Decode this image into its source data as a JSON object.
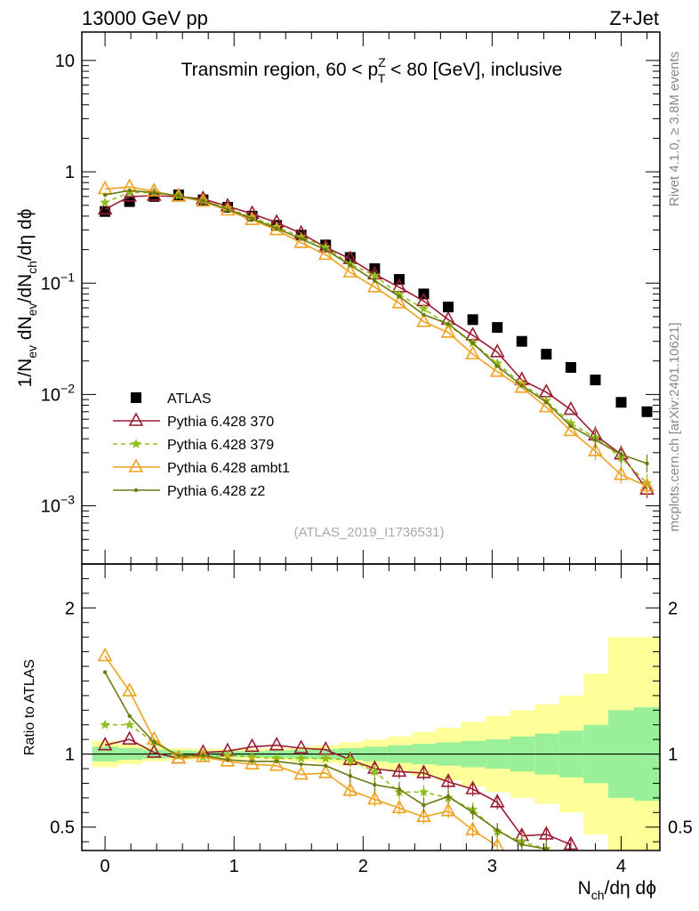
{
  "header": {
    "left": "13000 GeV pp",
    "right": "Z+Jet"
  },
  "side_labels": {
    "rivet": "Rivet 4.1.0, ≥ 3.8M events",
    "mcplots": "mcplots.cern.ch [arXiv:2401.10621]"
  },
  "chart_data": [
    {
      "type": "scatter",
      "panel": "main",
      "title_parts": {
        "pre": "Transmin region, 60 < p",
        "sup": "Z",
        "sub": "T",
        "post": " < 80 [GeV], inclusive"
      },
      "watermark": "(ATLAS_2019_I1736531)",
      "ylabel_parts": [
        "1/N",
        "ev",
        " dN",
        "ev",
        "/dN",
        "ch",
        "/dη dϕ"
      ],
      "xlabel_parts": [
        "N",
        "ch",
        "/dη dϕ"
      ],
      "yscale": "log",
      "xlim": [
        -0.18,
        4.3
      ],
      "ylim": [
        0.0003,
        18
      ],
      "y_ticks": [
        {
          "value": 10,
          "label": "10"
        },
        {
          "value": 1,
          "label": "1"
        },
        {
          "value": 0.1,
          "base": "10",
          "exp": "−1"
        },
        {
          "value": 0.01,
          "base": "10",
          "exp": "−2"
        },
        {
          "value": 0.001,
          "base": "10",
          "exp": "−3"
        }
      ],
      "x_ticks": [
        "0",
        "1",
        "2",
        "3",
        "4"
      ],
      "legend_position": "lower-left",
      "series": [
        {
          "name": "ATLAS",
          "color": "#000000",
          "marker": "square",
          "line": "none",
          "x": [
            0,
            0.19,
            0.38,
            0.57,
            0.76,
            0.95,
            1.14,
            1.33,
            1.52,
            1.71,
            1.9,
            2.09,
            2.28,
            2.47,
            2.66,
            2.85,
            3.04,
            3.23,
            3.42,
            3.61,
            3.8,
            4.0,
            4.2
          ],
          "y": [
            0.44,
            0.54,
            0.6,
            0.62,
            0.56,
            0.48,
            0.4,
            0.33,
            0.27,
            0.22,
            0.17,
            0.135,
            0.108,
            0.08,
            0.061,
            0.047,
            0.04,
            0.03,
            0.023,
            0.0175,
            0.0135,
            0.0085,
            0.007
          ]
        },
        {
          "name": "Pythia 6.428 370",
          "color": "#9b1b30",
          "marker": "triangle-open",
          "line": "solid",
          "x": [
            0,
            0.19,
            0.38,
            0.57,
            0.76,
            0.95,
            1.14,
            1.33,
            1.52,
            1.71,
            1.9,
            2.09,
            2.28,
            2.47,
            2.66,
            2.85,
            3.04,
            3.23,
            3.42,
            3.61,
            3.8,
            4.0,
            4.2
          ],
          "y": [
            0.46,
            0.6,
            0.61,
            0.6,
            0.57,
            0.49,
            0.42,
            0.35,
            0.28,
            0.21,
            0.165,
            0.12,
            0.092,
            0.069,
            0.047,
            0.034,
            0.024,
            0.0135,
            0.0105,
            0.0073,
            0.0043,
            0.0029,
            0.0014
          ]
        },
        {
          "name": "Pythia 6.428 379",
          "color": "#8fbf1a",
          "marker": "star",
          "line": "dashed",
          "x": [
            0,
            0.19,
            0.38,
            0.57,
            0.76,
            0.95,
            1.14,
            1.33,
            1.52,
            1.71,
            1.9,
            2.09,
            2.28,
            2.47,
            2.66,
            2.85,
            3.04,
            3.23,
            3.42,
            3.61,
            3.8,
            4.0,
            4.2
          ],
          "y": [
            0.53,
            0.65,
            0.65,
            0.61,
            0.55,
            0.47,
            0.39,
            0.32,
            0.26,
            0.21,
            0.148,
            0.117,
            0.079,
            0.059,
            0.042,
            0.029,
            0.019,
            0.0125,
            0.0088,
            0.0055,
            0.0041,
            0.0027,
            0.0016
          ]
        },
        {
          "name": "Pythia 6.428 ambt1",
          "color": "#f0a21e",
          "marker": "triangle-open",
          "line": "solid",
          "x": [
            0,
            0.19,
            0.38,
            0.57,
            0.76,
            0.95,
            1.14,
            1.33,
            1.52,
            1.71,
            1.9,
            2.09,
            2.28,
            2.47,
            2.66,
            2.85,
            3.04,
            3.23,
            3.42,
            3.61,
            3.8,
            4.0,
            4.2
          ],
          "y": [
            0.7,
            0.73,
            0.67,
            0.6,
            0.54,
            0.45,
            0.37,
            0.3,
            0.23,
            0.18,
            0.125,
            0.092,
            0.066,
            0.045,
            0.036,
            0.023,
            0.016,
            0.0115,
            0.0077,
            0.0047,
            0.0031,
            0.0019,
            0.0015
          ]
        },
        {
          "name": "Pythia 6.428 z2",
          "color": "#6b7a12",
          "marker": "dot",
          "line": "solid",
          "x": [
            0,
            0.19,
            0.38,
            0.57,
            0.76,
            0.95,
            1.14,
            1.33,
            1.52,
            1.71,
            1.9,
            2.09,
            2.28,
            2.47,
            2.66,
            2.85,
            3.04,
            3.23,
            3.42,
            3.61,
            3.8,
            4.0,
            4.2
          ],
          "y": [
            0.62,
            0.68,
            0.65,
            0.61,
            0.55,
            0.46,
            0.38,
            0.31,
            0.25,
            0.2,
            0.145,
            0.105,
            0.076,
            0.052,
            0.043,
            0.029,
            0.018,
            0.012,
            0.0085,
            0.0052,
            0.0039,
            0.0029,
            0.0024
          ]
        }
      ]
    },
    {
      "type": "line",
      "panel": "ratio",
      "ylabel": "Ratio to ATLAS",
      "xlim": [
        -0.18,
        4.3
      ],
      "ylim": [
        0.34,
        2.3
      ],
      "y_ticks": [
        "0.5",
        "1",
        "2"
      ],
      "band_edges": [
        -0.1,
        0.1,
        0.29,
        0.48,
        0.67,
        0.86,
        1.05,
        1.24,
        1.43,
        1.62,
        1.81,
        2.0,
        2.19,
        2.38,
        2.57,
        2.76,
        2.95,
        3.14,
        3.33,
        3.52,
        3.71,
        3.9,
        4.1,
        4.3
      ],
      "band_inner": [
        0.05,
        0.04,
        0.03,
        0.025,
        0.02,
        0.02,
        0.02,
        0.025,
        0.03,
        0.035,
        0.04,
        0.05,
        0.06,
        0.07,
        0.08,
        0.09,
        0.1,
        0.12,
        0.14,
        0.16,
        0.2,
        0.3,
        0.32
      ],
      "band_outer": [
        0.09,
        0.07,
        0.05,
        0.04,
        0.035,
        0.035,
        0.035,
        0.04,
        0.05,
        0.06,
        0.08,
        0.1,
        0.12,
        0.15,
        0.18,
        0.22,
        0.26,
        0.3,
        0.34,
        0.4,
        0.55,
        0.8,
        0.8
      ],
      "series": [
        {
          "name": "Pythia 6.428 370",
          "color": "#9b1b30",
          "x": [
            0,
            0.19,
            0.38,
            0.57,
            0.76,
            0.95,
            1.14,
            1.33,
            1.52,
            1.71,
            1.9,
            2.09,
            2.28,
            2.47,
            2.66,
            2.85,
            3.04,
            3.23,
            3.42,
            3.61
          ],
          "y": [
            1.06,
            1.1,
            1.01,
            0.97,
            1.01,
            1.02,
            1.05,
            1.06,
            1.04,
            1.03,
            0.96,
            0.9,
            0.88,
            0.87,
            0.81,
            0.76,
            0.67,
            0.44,
            0.45,
            0.38
          ]
        },
        {
          "name": "Pythia 6.428 379",
          "color": "#8fbf1a",
          "x": [
            0,
            0.19,
            0.38,
            0.57,
            0.76,
            0.95,
            1.14,
            1.33,
            1.52,
            1.71,
            1.9,
            2.09,
            2.28,
            2.47,
            2.66,
            2.85,
            3.04,
            3.23,
            3.42
          ],
          "y": [
            1.2,
            1.2,
            1.08,
            0.99,
            0.98,
            0.99,
            0.98,
            0.97,
            0.97,
            0.97,
            0.96,
            0.88,
            0.74,
            0.74,
            0.7,
            0.62,
            0.47,
            0.4,
            0.35
          ]
        },
        {
          "name": "Pythia 6.428 ambt1",
          "color": "#f0a21e",
          "x": [
            0,
            0.19,
            0.38,
            0.57,
            0.76,
            0.95,
            1.14,
            1.33,
            1.52,
            1.71,
            1.9,
            2.09,
            2.28,
            2.47,
            2.66,
            2.85,
            3.04
          ],
          "y": [
            1.67,
            1.43,
            1.1,
            0.97,
            0.98,
            0.95,
            0.93,
            0.92,
            0.86,
            0.87,
            0.75,
            0.69,
            0.63,
            0.57,
            0.61,
            0.48,
            0.37
          ]
        },
        {
          "name": "Pythia 6.428 z2",
          "color": "#6b7a12",
          "x": [
            0,
            0.19,
            0.38,
            0.57,
            0.76,
            0.95,
            1.14,
            1.33,
            1.52,
            1.71,
            1.9,
            2.09,
            2.28,
            2.47,
            2.66,
            2.85,
            3.04,
            3.23,
            3.42
          ],
          "y": [
            1.56,
            1.26,
            1.08,
            0.99,
            0.99,
            0.96,
            0.95,
            0.95,
            0.93,
            0.92,
            0.85,
            0.79,
            0.76,
            0.65,
            0.71,
            0.6,
            0.48,
            0.38,
            0.35
          ]
        }
      ]
    }
  ]
}
